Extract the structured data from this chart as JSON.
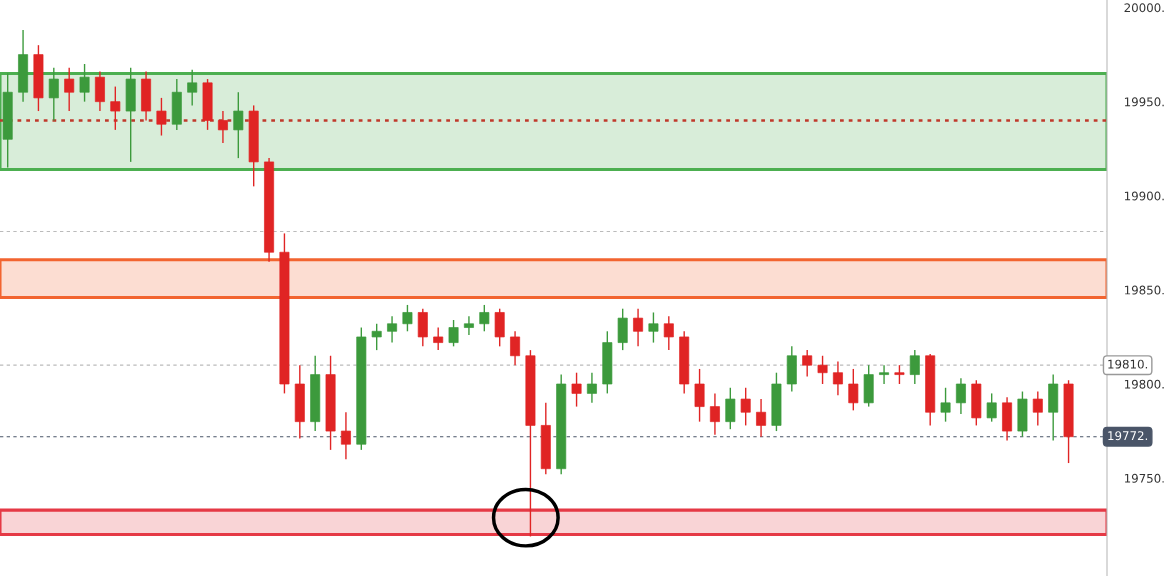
{
  "chart_data": {
    "type": "candlestick",
    "categories": [
      null,
      null,
      null,
      null,
      null,
      null,
      null,
      null,
      null,
      null,
      null,
      null,
      null,
      null,
      null,
      null,
      null,
      null,
      null,
      null,
      null,
      null,
      null,
      null,
      null,
      null,
      null,
      null,
      null,
      null,
      null,
      null,
      null,
      null,
      null,
      null,
      null,
      null,
      null,
      null,
      null,
      null,
      null,
      null,
      null,
      null,
      null,
      null,
      null,
      null,
      null,
      null,
      null,
      null,
      null,
      null,
      null,
      null,
      null,
      null,
      null,
      null,
      null,
      null,
      null,
      null,
      null,
      null,
      null,
      null
    ],
    "ohlc": [
      [
        19930,
        19965,
        19915,
        19955
      ],
      [
        19955,
        19988,
        19950,
        19975
      ],
      [
        19975,
        19980,
        19945,
        19952
      ],
      [
        19952,
        19968,
        19940,
        19962
      ],
      [
        19962,
        19968,
        19945,
        19955
      ],
      [
        19955,
        19970,
        19950,
        19963
      ],
      [
        19963,
        19966,
        19945,
        19950
      ],
      [
        19950,
        19958,
        19935,
        19945
      ],
      [
        19945,
        19968,
        19918,
        19962
      ],
      [
        19962,
        19966,
        19940,
        19945
      ],
      [
        19945,
        19952,
        19932,
        19938
      ],
      [
        19938,
        19962,
        19935,
        19955
      ],
      [
        19955,
        19967,
        19948,
        19960
      ],
      [
        19960,
        19962,
        19935,
        19940
      ],
      [
        19940,
        19945,
        19928,
        19935
      ],
      [
        19935,
        19955,
        19920,
        19945
      ],
      [
        19945,
        19948,
        19905,
        19918
      ],
      [
        19918,
        19920,
        19865,
        19870
      ],
      [
        19870,
        19880,
        19795,
        19800
      ],
      [
        19800,
        19810,
        19771,
        19780
      ],
      [
        19780,
        19815,
        19775,
        19805
      ],
      [
        19805,
        19815,
        19765,
        19775
      ],
      [
        19775,
        19785,
        19760,
        19768
      ],
      [
        19768,
        19830,
        19765,
        19825
      ],
      [
        19825,
        19832,
        19818,
        19828
      ],
      [
        19828,
        19836,
        19822,
        19832
      ],
      [
        19832,
        19842,
        19828,
        19838
      ],
      [
        19838,
        19840,
        19820,
        19825
      ],
      [
        19825,
        19830,
        19818,
        19822
      ],
      [
        19822,
        19834,
        19820,
        19830
      ],
      [
        19830,
        19836,
        19826,
        19832
      ],
      [
        19832,
        19842,
        19828,
        19838
      ],
      [
        19838,
        19840,
        19820,
        19825
      ],
      [
        19825,
        19828,
        19810,
        19815
      ],
      [
        19815,
        19818,
        19719,
        19778
      ],
      [
        19778,
        19790,
        19752,
        19755
      ],
      [
        19755,
        19805,
        19752,
        19800
      ],
      [
        19800,
        19806,
        19788,
        19795
      ],
      [
        19795,
        19806,
        19790,
        19800
      ],
      [
        19800,
        19828,
        19795,
        19822
      ],
      [
        19822,
        19840,
        19818,
        19835
      ],
      [
        19835,
        19840,
        19820,
        19828
      ],
      [
        19828,
        19838,
        19822,
        19832
      ],
      [
        19832,
        19836,
        19818,
        19825
      ],
      [
        19825,
        19828,
        19795,
        19800
      ],
      [
        19800,
        19808,
        19780,
        19788
      ],
      [
        19788,
        19795,
        19773,
        19780
      ],
      [
        19780,
        19798,
        19776,
        19792
      ],
      [
        19792,
        19798,
        19778,
        19785
      ],
      [
        19785,
        19792,
        19772,
        19778
      ],
      [
        19778,
        19806,
        19775,
        19800
      ],
      [
        19800,
        19820,
        19796,
        19815
      ],
      [
        19815,
        19818,
        19804,
        19810
      ],
      [
        19810,
        19815,
        19800,
        19806
      ],
      [
        19806,
        19812,
        19794,
        19800
      ],
      [
        19800,
        19808,
        19786,
        19790
      ],
      [
        19790,
        19810,
        19788,
        19805
      ],
      [
        19805,
        19810,
        19800,
        19806
      ],
      [
        19806,
        19810,
        19800,
        19805
      ],
      [
        19805,
        19818,
        19800,
        19815
      ],
      [
        19815,
        19816,
        19778,
        19785
      ],
      [
        19785,
        19798,
        19780,
        19790
      ],
      [
        19790,
        19803,
        19784,
        19800
      ],
      [
        19800,
        19802,
        19778,
        19782
      ],
      [
        19782,
        19795,
        19780,
        19790
      ],
      [
        19790,
        19793,
        19770,
        19775
      ],
      [
        19775,
        19796,
        19772,
        19792
      ],
      [
        19792,
        19796,
        19778,
        19785
      ],
      [
        19785,
        19805,
        19770,
        19800
      ],
      [
        19800,
        19802,
        19758,
        19772
      ]
    ],
    "ylim": [
      19698,
      20004
    ],
    "yticks": [
      {
        "value": 20000,
        "label": "20000."
      },
      {
        "value": 19950,
        "label": "19950."
      },
      {
        "value": 19900,
        "label": "19900."
      },
      {
        "value": 19850,
        "label": "19850."
      },
      {
        "value": 19800,
        "label": "19800."
      },
      {
        "value": 19750,
        "label": "19750."
      }
    ],
    "tick_labels": "y",
    "grid": false,
    "bands": [
      {
        "axis": "y",
        "from": 19914,
        "to": 19965,
        "color": "#4caf50"
      },
      {
        "axis": "y",
        "from": 19846,
        "to": 19866,
        "color": "#f26430"
      },
      {
        "axis": "y",
        "from": 19720,
        "to": 19733,
        "color": "#e53945"
      }
    ],
    "ref_lines": [
      {
        "axis": "y",
        "value": 19940,
        "color": "#c0392b",
        "line_style": "dotted"
      },
      {
        "axis": "y",
        "value": 19881,
        "color": "#bbbbbb",
        "line_style": "dashed"
      },
      {
        "axis": "y",
        "value": 19810,
        "label": "19810.",
        "color": "#bbbbbb",
        "line_style": "dashed"
      },
      {
        "axis": "y",
        "value": 19772,
        "label": "19772.",
        "color": "#4a5568",
        "line_style": "dashed"
      }
    ]
  }
}
